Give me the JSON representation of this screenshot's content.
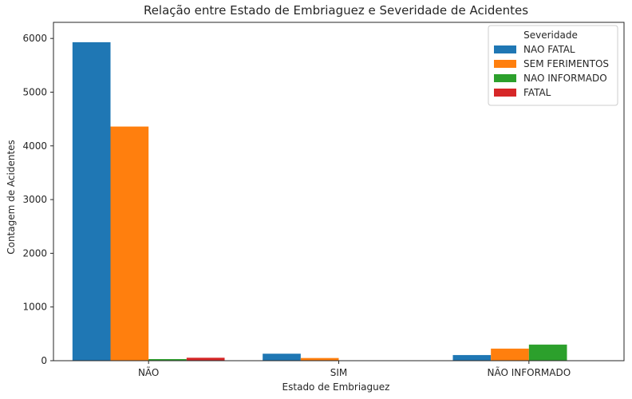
{
  "chart_data": {
    "type": "bar",
    "title": "Relação entre Estado de Embriaguez e Severidade de Acidentes",
    "xlabel": "Estado de Embriaguez",
    "ylabel": "Contagem de Acidentes",
    "categories": [
      "NÃO",
      "SIM",
      "NÃO INFORMADO"
    ],
    "ylim": [
      0,
      6300
    ],
    "yticks": [
      0,
      1000,
      2000,
      3000,
      4000,
      5000,
      6000
    ],
    "grid": false,
    "legend": {
      "title": "Severidade",
      "placement": "top-right"
    },
    "series": [
      {
        "name": "NAO FATAL",
        "color": "#1f77b4",
        "values": [
          5930,
          130,
          105
        ]
      },
      {
        "name": "SEM FERIMENTOS",
        "color": "#ff7f0e",
        "values": [
          4360,
          50,
          225
        ]
      },
      {
        "name": "NAO INFORMADO",
        "color": "#2ca02c",
        "values": [
          30,
          0,
          300
        ]
      },
      {
        "name": "FATAL",
        "color": "#d62728",
        "values": [
          55,
          0,
          0
        ]
      }
    ]
  }
}
